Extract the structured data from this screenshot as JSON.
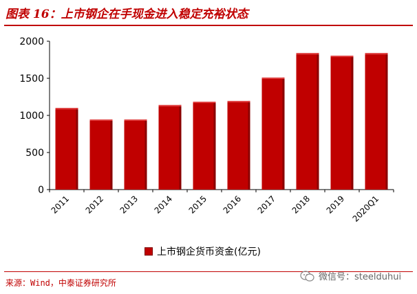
{
  "figure": {
    "title": "图表 16：上市钢企在手现金进入稳定充裕状态",
    "source": "来源：Wind，中泰证券研究所",
    "watermark": "微信号：steelduhui",
    "accent_color": "#c00000",
    "watermark_icon": "wechat-icon"
  },
  "chart_data": {
    "type": "bar",
    "title": "",
    "xlabel": "",
    "ylabel": "",
    "categories": [
      "2011",
      "2012",
      "2013",
      "2014",
      "2015",
      "2016",
      "2017",
      "2018",
      "2019",
      "2020Q1"
    ],
    "series": [
      {
        "name": "上市钢企货币资金(亿元)",
        "values": [
          1100,
          945,
          945,
          1140,
          1185,
          1195,
          1510,
          1840,
          1805,
          1840
        ],
        "color": "#c00000"
      }
    ],
    "ylim": [
      0,
      2000
    ],
    "yticks": [
      0,
      500,
      1000,
      1500,
      2000
    ],
    "grid": false,
    "legend_position": "bottom"
  }
}
